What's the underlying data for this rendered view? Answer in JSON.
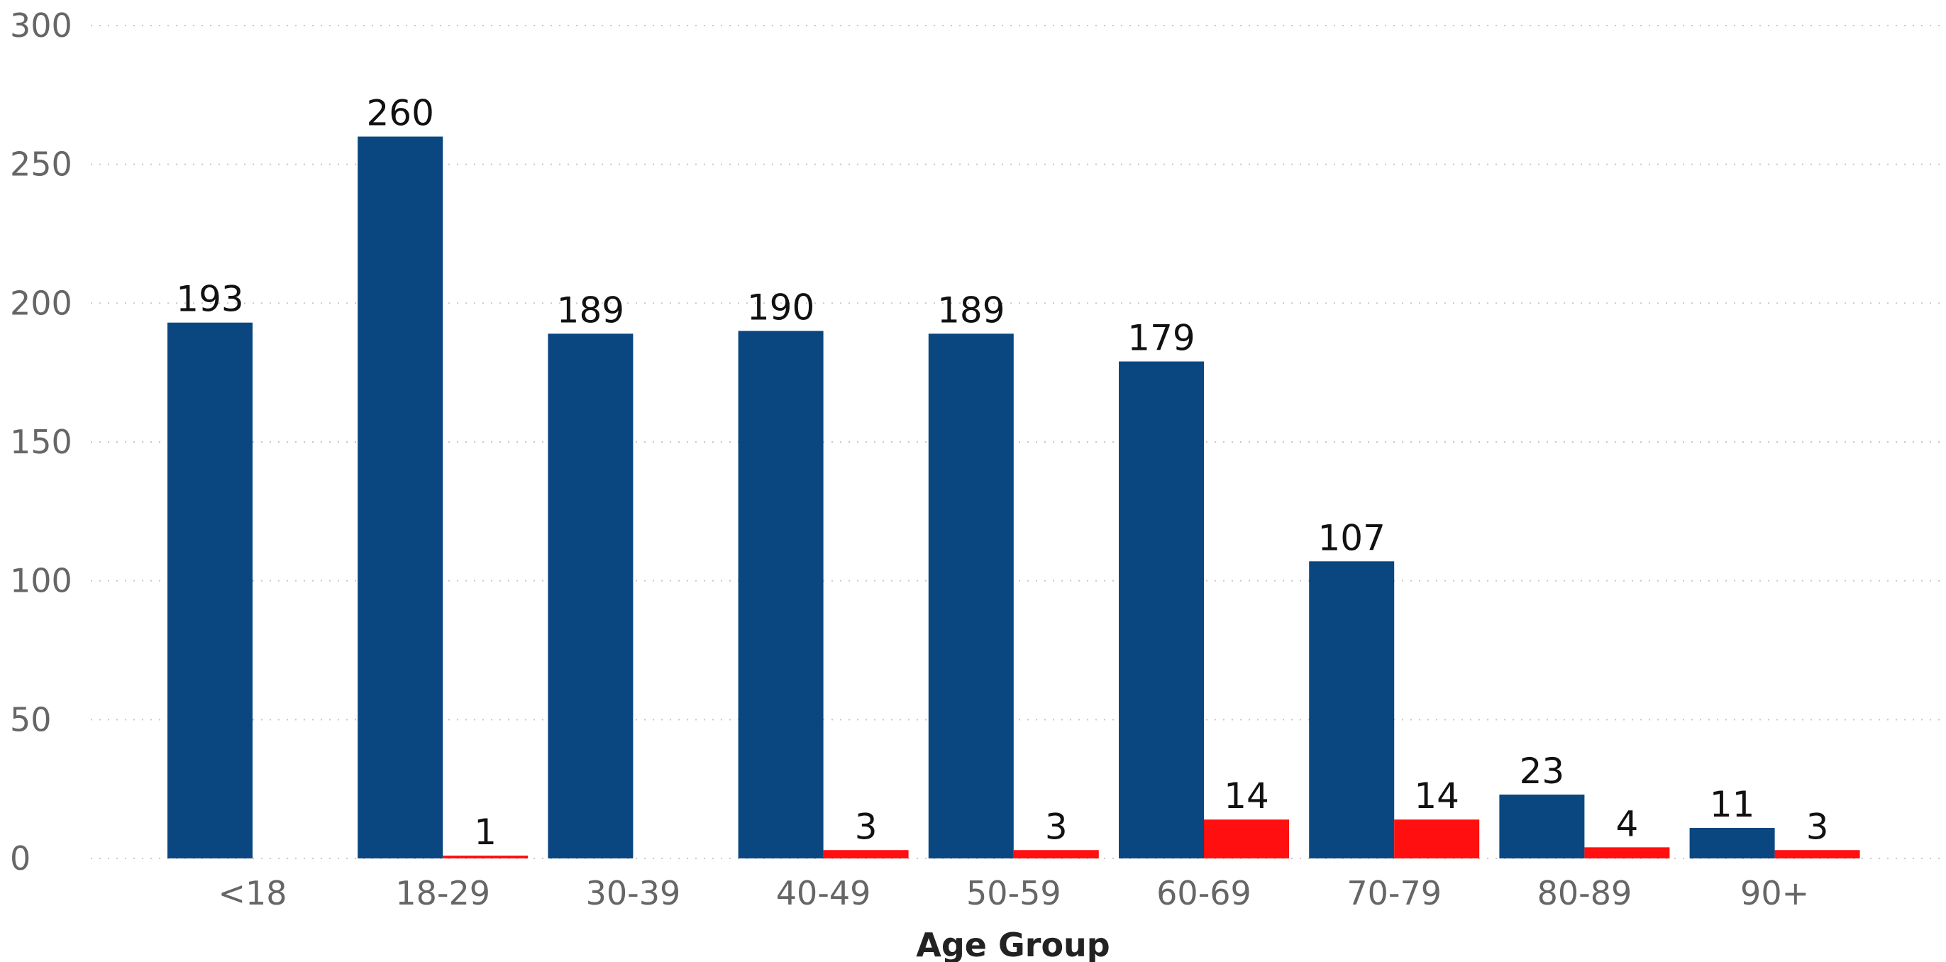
{
  "chart_data": {
    "type": "bar",
    "categories": [
      "<18",
      "18-29",
      "30-39",
      "40-49",
      "50-59",
      "60-69",
      "70-79",
      "80-89",
      "90+"
    ],
    "series": [
      {
        "values": [
          193,
          260,
          189,
          190,
          189,
          179,
          107,
          23,
          11
        ],
        "color": "#0a4780"
      },
      {
        "values": [
          null,
          1,
          null,
          3,
          3,
          14,
          14,
          4,
          3
        ],
        "color": "#ff0f0f"
      }
    ],
    "xlabel": "Age Group",
    "ylabel": "",
    "ylim": [
      0,
      300
    ],
    "yticks": [
      0,
      50,
      100,
      150,
      200,
      250,
      300
    ],
    "grid": true,
    "legend": "none"
  }
}
